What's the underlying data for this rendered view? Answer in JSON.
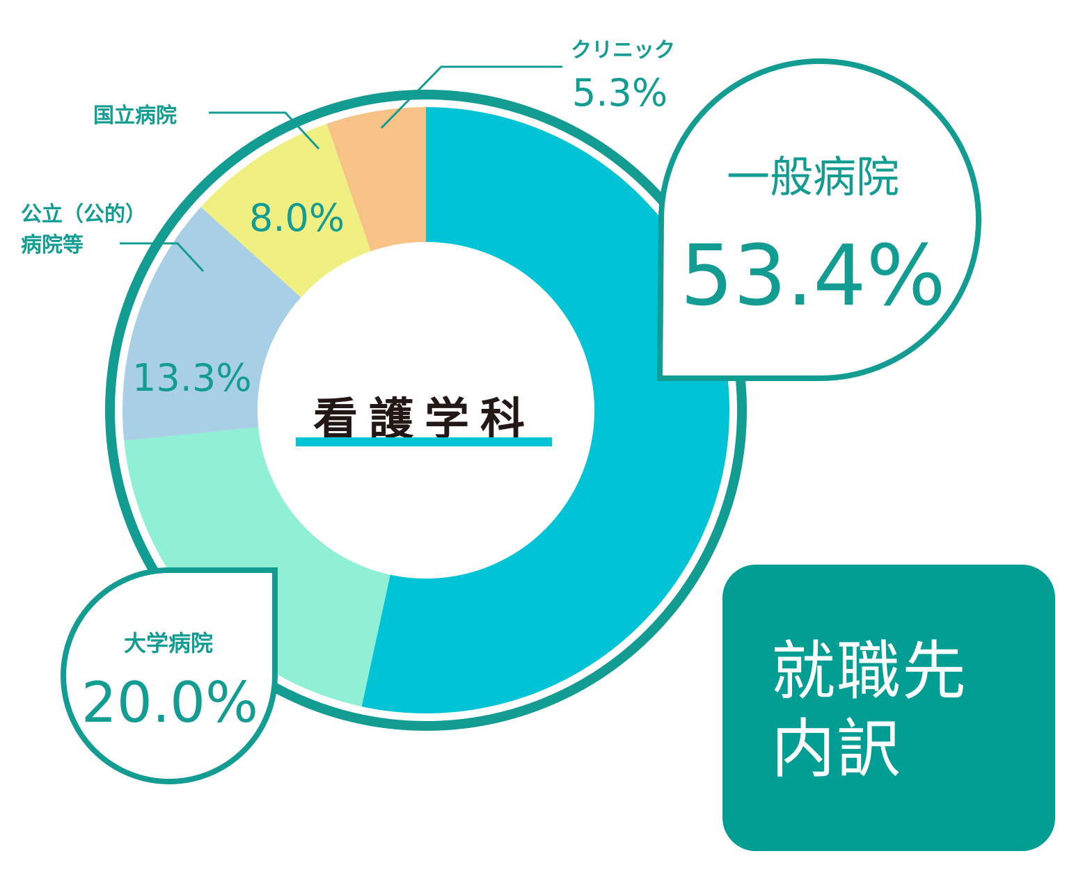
{
  "chart_data": {
    "type": "pie",
    "title": "看護学科",
    "categories": [
      "一般病院",
      "大学病院",
      "公立（公的）病院等",
      "国立病院",
      "クリニック"
    ],
    "values": [
      53.4,
      20.0,
      13.3,
      8.0,
      5.3
    ],
    "value_labels": [
      "53.4%",
      "20.0%",
      "13.3%",
      "8.0%",
      "5.3%"
    ],
    "colors": [
      "#00c3d6",
      "#8ff0d6",
      "#a8cfe6",
      "#f0ef82",
      "#f7c285"
    ],
    "unit": "%"
  },
  "labels": {
    "general_name": "一般病院",
    "general_value": "53.4%",
    "university_name": "大学病院",
    "university_value": "20.0%",
    "public_name_line1": "公立（公的）",
    "public_name_line2": "病院等",
    "public_value": "13.3%",
    "national_name": "国立病院",
    "national_value": "8.0%",
    "clinic_name": "クリニック",
    "clinic_value": "5.3%"
  },
  "badge": {
    "line1": "就職先",
    "line2": "内訳"
  },
  "accent_color": "#139c92"
}
